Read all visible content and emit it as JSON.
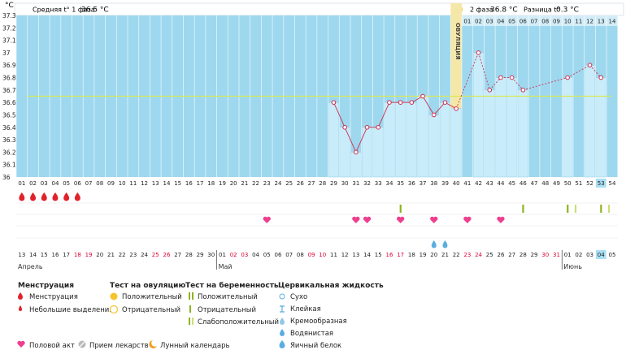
{
  "header": {
    "temp_unit": "°C",
    "phase1_label": "Средняя t° 1 фаза",
    "phase1_value": "36.5 °C",
    "phase2_label": "2 фаза",
    "phase2_value": "36.8 °C",
    "diff_label": "Разница t°",
    "diff_value": "0.3 °C",
    "ovulation_label": "ОВУЛЯЦИЯ"
  },
  "colors": {
    "plot_bg": "#9ed8ef",
    "bar": "#c8ecfa",
    "bar_border": "#8fcbe6",
    "line": "#cc2f50",
    "mean_line": "#d8e85a",
    "ovulation": "#f5e7a8",
    "weekend": "#dd0033",
    "menstruation": "#e1222a",
    "sex": "#ee3f8f",
    "test_positive": "#8cb31e",
    "test_weak": "#c8e07a",
    "mucus": "#5aaee0",
    "today": "#a9dff3"
  },
  "chart_data": {
    "type": "line",
    "ylabel": "°C",
    "ylim": [
      36.0,
      37.3
    ],
    "yticks": [
      "37.3",
      "37.2",
      "37.1",
      "37",
      "36.9",
      "36.8",
      "36.7",
      "36.6",
      "36.5",
      "36.4",
      "36.3",
      "36.2",
      "36.1",
      "36"
    ],
    "cycle_days": [
      "01",
      "02",
      "03",
      "04",
      "05",
      "06",
      "07",
      "08",
      "09",
      "10",
      "11",
      "12",
      "13",
      "14",
      "15",
      "16",
      "17",
      "18",
      "19",
      "20",
      "21",
      "22",
      "23",
      "24",
      "25",
      "26",
      "27",
      "28",
      "29",
      "30",
      "31",
      "32",
      "33",
      "34",
      "35",
      "36",
      "37",
      "38",
      "39",
      "40",
      "41",
      "42",
      "43",
      "44",
      "45",
      "46",
      "47",
      "48",
      "49",
      "50",
      "51",
      "52",
      "53",
      "54"
    ],
    "top_days": [
      "01",
      "02",
      "03",
      "04",
      "05",
      "06",
      "07",
      "08",
      "09",
      "10",
      "11",
      "12",
      "13",
      "14"
    ],
    "top_days_start_cycle_day": 41,
    "calendar_dates": [
      "13",
      "14",
      "15",
      "16",
      "17",
      "18",
      "19",
      "20",
      "21",
      "22",
      "23",
      "24",
      "25",
      "26",
      "27",
      "28",
      "29",
      "30",
      "01",
      "02",
      "03",
      "04",
      "05",
      "06",
      "07",
      "08",
      "09",
      "10",
      "11",
      "12",
      "13",
      "14",
      "15",
      "16",
      "17",
      "18",
      "19",
      "20",
      "21",
      "22",
      "23",
      "24",
      "25",
      "26",
      "27",
      "28",
      "29",
      "30",
      "31",
      "01",
      "02",
      "03",
      "04",
      "05"
    ],
    "calendar_weekend_indices": [
      5,
      6,
      12,
      13,
      19,
      20,
      26,
      27,
      33,
      34,
      40,
      41,
      47,
      48
    ],
    "months": [
      {
        "name": "Апрель",
        "start_index": 0
      },
      {
        "name": "Май",
        "start_index": 18
      },
      {
        "name": "Июнь",
        "start_index": 49
      }
    ],
    "series": [
      {
        "values": [
          null,
          null,
          null,
          null,
          null,
          null,
          null,
          null,
          null,
          null,
          null,
          null,
          null,
          null,
          null,
          null,
          null,
          null,
          null,
          null,
          null,
          null,
          null,
          null,
          null,
          null,
          null,
          null,
          36.6,
          36.4,
          36.2,
          36.4,
          36.4,
          36.6,
          36.6,
          36.6,
          36.65,
          36.5,
          36.6,
          36.55,
          null,
          37.0,
          36.7,
          36.8,
          36.8,
          36.7,
          null,
          null,
          null,
          36.8,
          null,
          36.9,
          36.8,
          null
        ]
      }
    ],
    "dashed_after_cycle_day": 39,
    "mean_line_value": 36.65,
    "ovulation_cycle_day": 40,
    "today_cycle_day": 53,
    "current_cycle_day_label": "53",
    "menstruation_days": [
      1,
      2,
      3,
      4,
      5,
      6
    ],
    "sex_days": [
      23,
      31,
      32,
      35,
      38,
      41,
      44
    ],
    "pregnancy_test_positive_days": [
      35,
      46,
      50,
      53
    ],
    "pregnancy_test_weak_days": [
      51,
      54
    ],
    "mucus_watery_days": [
      38,
      39
    ]
  },
  "legend": {
    "col1_title": "Менструация",
    "col1_items": [
      "Менструация",
      "Небольшие выделения"
    ],
    "col2_title": "Тест на овуляцию",
    "col2_items": [
      "Положительный",
      "Отрицательный"
    ],
    "col3_title": "Тест на беременность",
    "col3_items": [
      "Положительный",
      "Отрицательный",
      "Слабоположительный"
    ],
    "col4_title": "Цервикальная жидкость",
    "col4_items": [
      "Сухо",
      "Клейкая",
      "Кремообразная",
      "Водянистая",
      "Яичный белок"
    ],
    "bottom_items": [
      "Половой акт",
      "Прием лекарств",
      "Лунный календарь"
    ]
  }
}
